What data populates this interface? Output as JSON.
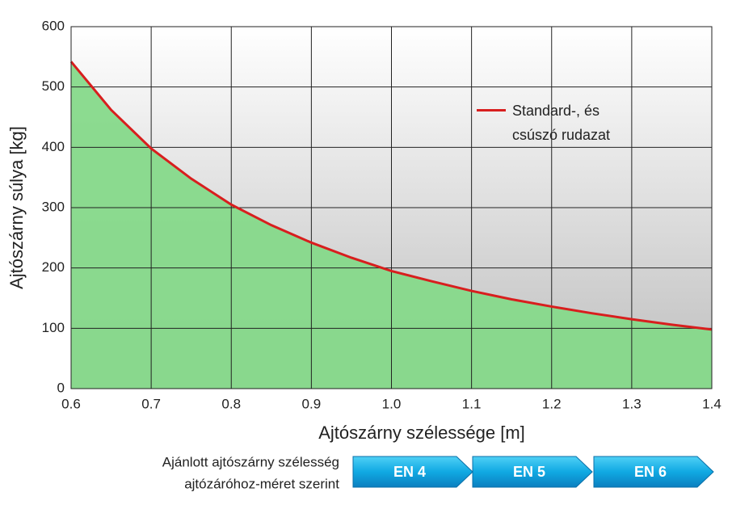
{
  "chart_data": {
    "type": "area",
    "x_label": "Ajtószárny szélessége [m]",
    "y_label": "Ajtószárny súlya [kg]",
    "x": [
      0.6,
      0.65,
      0.7,
      0.75,
      0.8,
      0.85,
      0.9,
      0.95,
      1.0,
      1.05,
      1.1,
      1.15,
      1.2,
      1.25,
      1.3,
      1.35,
      1.4
    ],
    "series": [
      {
        "name": "Standard-, és csúszó rudazat",
        "color": "#d81e1e",
        "values": [
          542,
          462,
          398,
          348,
          305,
          271,
          242,
          217,
          195,
          178,
          162,
          148,
          136,
          125,
          115,
          106,
          98
        ]
      }
    ],
    "fill_color": "#86d98a",
    "xlim": [
      0.6,
      1.4
    ],
    "xticks": [
      0.6,
      0.7,
      0.8,
      0.9,
      {
        "value": 1,
        "label": "1.0"
      },
      1.1,
      1.2,
      1.3,
      1.4
    ],
    "ylim": [
      0,
      600
    ],
    "yticks": [
      0,
      100,
      200,
      300,
      400,
      500,
      600
    ],
    "grid": true,
    "legend": "upper right",
    "annotations": {
      "caption": [
        "Ajánlott ajtószárny szélesség",
        "ajtózáróhoz-méret szerint"
      ],
      "bands": [
        "EN 4",
        "EN 5",
        "EN 6"
      ]
    }
  }
}
